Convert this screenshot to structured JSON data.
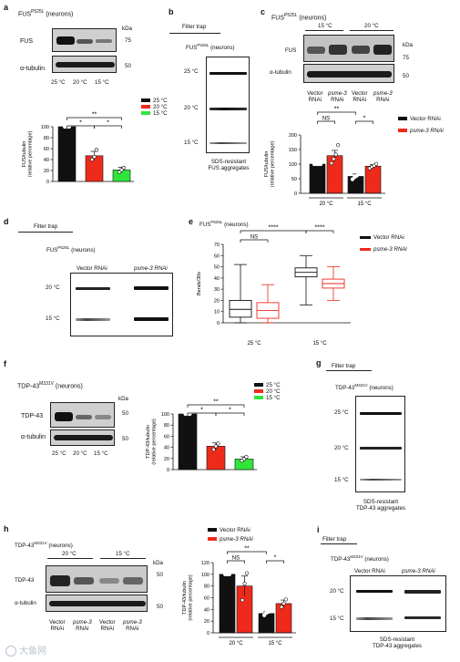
{
  "panels": {
    "a": {
      "label": "a",
      "title_pre": "FUS",
      "title_sup": "P525L",
      "title_post": " (neurons)",
      "blot_labels": [
        "FUS",
        "α-tubulin"
      ],
      "kda": "kDa",
      "marker_top": "75",
      "marker_bottom": "50",
      "lanes": [
        "25 °C",
        "20 °C",
        "15 °C"
      ],
      "legend": [
        "25 °C",
        "20 °C",
        "15 °C"
      ],
      "sig": [
        "**",
        "*",
        "*"
      ]
    },
    "b": {
      "label": "b",
      "header": "Filter trap",
      "title_pre": "FUS",
      "title_sup": "P525L",
      "title_post": " (neurons)",
      "rows": [
        "25 °C",
        "20 °C",
        "15 °C"
      ],
      "caption": [
        "SDS-resistant",
        "FUS aggregates"
      ]
    },
    "c": {
      "label": "c",
      "title_pre": "FUS",
      "title_sup": "P525L",
      "title_post": " (neurons)",
      "groups": [
        "15 °C",
        "20 °C"
      ],
      "blot_labels": [
        "FUS",
        "α-tubulin"
      ],
      "kda": "kDa",
      "marker_top": "75",
      "marker_bottom": "50",
      "lanes": [
        [
          "Vector",
          "RNAi"
        ],
        [
          "psme-3",
          "RNAi"
        ],
        [
          "Vector",
          "RNAi"
        ],
        [
          "psme-3",
          "RNAi"
        ]
      ],
      "legend": [
        "Vector RNAi",
        "psme-3 RNAi"
      ],
      "sig": [
        "**",
        "NS",
        "*"
      ],
      "xgroups": [
        "20 °C",
        "15 °C"
      ]
    },
    "d": {
      "label": "d",
      "header": "Filter trap",
      "title_pre": "FUS",
      "title_sup": "P525L",
      "title_post": " (neurons)",
      "cols": [
        "Vector RNAi",
        "psme-3 RNAi"
      ],
      "rows": [
        "20 °C",
        "15 °C"
      ]
    },
    "e": {
      "label": "e",
      "title_pre": "FUS",
      "title_sup": "P525L",
      "title_post": " (neurons)",
      "legend": [
        "Vector RNAi",
        "psme-3 RNAi"
      ],
      "sig": [
        "****",
        "NS",
        "****"
      ],
      "xgroups": [
        "25 °C",
        "15 °C"
      ]
    },
    "f": {
      "label": "f",
      "title_pre": "TDP-43",
      "title_sup": "M331V",
      "title_post": " (neurons)",
      "blot_labels": [
        "TDP-43",
        "α-tubulin"
      ],
      "kda": "kDa",
      "marker_top": "50",
      "marker_bottom": "50",
      "lanes": [
        "25 °C",
        "20 °C",
        "15 °C"
      ],
      "legend": [
        "25 °C",
        "20 °C",
        "15 °C"
      ],
      "sig": [
        "**",
        "*",
        "*"
      ]
    },
    "g": {
      "label": "g",
      "header": "Filter trap",
      "title_pre": "TDP-43",
      "title_sup": "M331V",
      "title_post": " (neurons)",
      "rows": [
        "25 °C",
        "20 °C",
        "15 °C"
      ],
      "caption": [
        "SDS-resistant",
        "TDP-43 aggregates"
      ]
    },
    "h": {
      "label": "h",
      "title_pre": "TDP-43",
      "title_sup": "M331V",
      "title_post": " (neurons)",
      "groups": [
        "20 °C",
        "15 °C"
      ],
      "blot_labels": [
        "TDP-43",
        "α-tubulin"
      ],
      "kda": "kDa",
      "marker_top": "50",
      "marker_bottom": "50",
      "lanes": [
        [
          "Vector",
          "RNAi"
        ],
        [
          "psme-3",
          "RNAi"
        ],
        [
          "Vector",
          "RNAi"
        ],
        [
          "psme-3",
          "RNAi"
        ]
      ],
      "legend": [
        "Vector RNAi",
        "psme-3 RNAi"
      ],
      "sig": [
        "**",
        "NS",
        "*"
      ],
      "xgroups": [
        "20 °C",
        "15 °C"
      ]
    },
    "i": {
      "label": "i",
      "header": "Filter trap",
      "title_pre": "TDP-43",
      "title_sup": "M331V",
      "title_post": " (neurons)",
      "cols": [
        "Vector RNAi",
        "psme-3 RNAi"
      ],
      "rows": [
        "20 °C",
        "15 °C"
      ],
      "caption": [
        "SDS-resistant",
        "TDP-43 aggregates"
      ]
    }
  },
  "colors": {
    "black": "#111111",
    "red": "#ee2a1b",
    "green": "#2ee53a"
  },
  "watermark": "大鱼网",
  "chart_data": [
    {
      "id": "a",
      "type": "bar",
      "categories": [
        "25 °C",
        "20 °C",
        "15 °C"
      ],
      "values": [
        100,
        47,
        21
      ],
      "errors": [
        1,
        8,
        5
      ],
      "points": [
        [
          100,
          100,
          100
        ],
        [
          40,
          45,
          58
        ],
        [
          17,
          21,
          25
        ]
      ],
      "ylabel": "FUS/tubulin (relative percentage)",
      "yticks": [
        0,
        20,
        40,
        60,
        80,
        100
      ],
      "ylim": [
        0,
        100
      ]
    },
    {
      "id": "c",
      "type": "bar",
      "categories": [
        "20 °C",
        "15 °C"
      ],
      "series": [
        {
          "name": "Vector RNAi",
          "values": [
            100,
            58
          ],
          "errors": [
            1,
            8
          ],
          "points": [
            [
              100,
              100,
              100,
              100
            ],
            [
              48,
              55,
              60,
              68
            ]
          ]
        },
        {
          "name": "psme-3 RNAi",
          "values": [
            129,
            93
          ],
          "errors": [
            18,
            6
          ],
          "points": [
            [
              103,
              118,
              133,
              165
            ],
            [
              86,
              91,
              95,
              101
            ]
          ]
        }
      ],
      "ylabel": "FUS/tubulin (relative percentage)",
      "yticks": [
        0,
        50,
        100,
        150,
        200
      ],
      "ylim": [
        0,
        200
      ]
    },
    {
      "id": "e",
      "type": "box",
      "categories": [
        "25 °C",
        "15 °C"
      ],
      "series": [
        {
          "name": "Vector RNAi",
          "boxes": [
            {
              "min": 0,
              "q1": 5,
              "median": 12,
              "q3": 20,
              "max": 52
            },
            {
              "min": 16,
              "q1": 41,
              "median": 45,
              "q3": 49,
              "max": 60
            }
          ]
        },
        {
          "name": "psme-3 RNAi",
          "boxes": [
            {
              "min": 0,
              "q1": 4,
              "median": 11,
              "q3": 18,
              "max": 34
            },
            {
              "min": 20,
              "q1": 31,
              "median": 35,
              "q3": 39,
              "max": 50
            }
          ]
        }
      ],
      "ylabel": "Bends/30s",
      "yticks": [
        0,
        10,
        20,
        30,
        40,
        50,
        60,
        70
      ],
      "ylim": [
        0,
        70
      ]
    },
    {
      "id": "f",
      "type": "bar",
      "categories": [
        "25 °C",
        "20 °C",
        "15 °C"
      ],
      "values": [
        100,
        42,
        19
      ],
      "errors": [
        1,
        6,
        4
      ],
      "points": [
        [
          100,
          100,
          100
        ],
        [
          36,
          42,
          47
        ],
        [
          16,
          19,
          23
        ]
      ],
      "ylabel": "TDP-43/tubulin (relative percentage)",
      "yticks": [
        0,
        20,
        40,
        60,
        80,
        100
      ],
      "ylim": [
        0,
        100
      ]
    },
    {
      "id": "h",
      "type": "bar",
      "categories": [
        "20 °C",
        "15 °C"
      ],
      "series": [
        {
          "name": "Vector RNAi",
          "values": [
            100,
            33
          ],
          "errors": [
            1,
            3
          ],
          "points": [
            [
              100,
              100,
              100
            ],
            [
              30,
              34,
              36
            ]
          ]
        },
        {
          "name": "psme-3 RNAi",
          "values": [
            80,
            50
          ],
          "errors": [
            17,
            6
          ],
          "points": [
            [
              56,
              84,
              102
            ],
            [
              44,
              50,
              57
            ]
          ]
        }
      ],
      "ylabel": "TDP-43/tubulin (relative percentage)",
      "yticks": [
        0,
        20,
        40,
        60,
        80,
        100,
        120
      ],
      "ylim": [
        0,
        120
      ]
    }
  ]
}
